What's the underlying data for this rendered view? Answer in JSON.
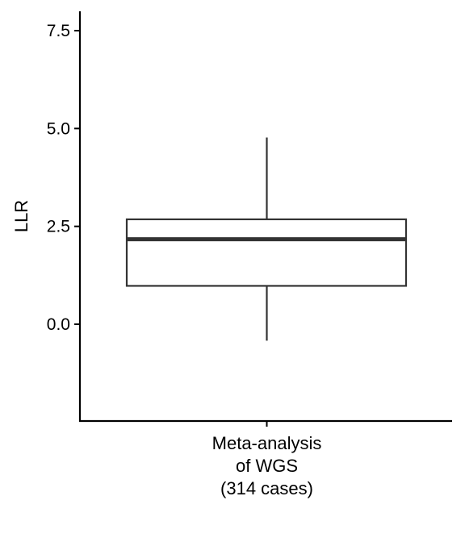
{
  "chart_data": {
    "type": "box",
    "ylabel": "LLR",
    "ylim": [
      -2.4,
      8.0
    ],
    "yticks": [
      0.0,
      2.5,
      5.0,
      7.5
    ],
    "ytick_labels": [
      "0.0",
      "2.5",
      "5.0",
      "7.5"
    ],
    "categories": [
      {
        "label_lines": [
          "Meta-analysis",
          "of WGS",
          "(314 cases)"
        ],
        "whisker_low": -0.42,
        "q1": 0.98,
        "median": 2.17,
        "q3": 2.68,
        "whisker_high": 4.77
      }
    ],
    "grid": false,
    "legend": "none",
    "colors": {
      "line": "#333333",
      "axis": "#000000",
      "fill": "#ffffff"
    }
  }
}
